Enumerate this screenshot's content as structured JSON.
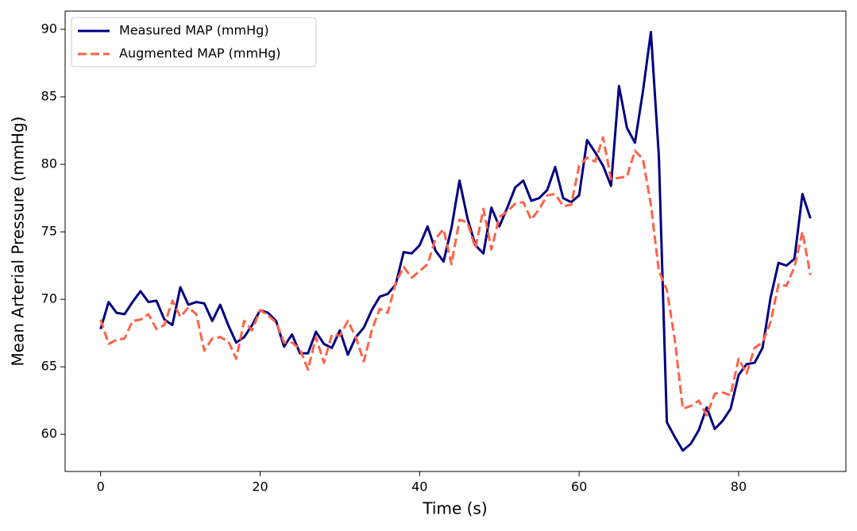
{
  "chart_data": {
    "type": "line",
    "xlabel": "Time (s)",
    "ylabel": "Mean Arterial Pressure (mmHg)",
    "x": [
      0,
      1,
      2,
      3,
      4,
      5,
      6,
      7,
      8,
      9,
      10,
      11,
      12,
      13,
      14,
      15,
      16,
      17,
      18,
      19,
      20,
      21,
      22,
      23,
      24,
      25,
      26,
      27,
      28,
      29,
      30,
      31,
      32,
      33,
      34,
      35,
      36,
      37,
      38,
      39,
      40,
      41,
      42,
      43,
      44,
      45,
      46,
      47,
      48,
      49,
      50,
      51,
      52,
      53,
      54,
      55,
      56,
      57,
      58,
      59,
      60,
      61,
      62,
      63,
      64,
      65,
      66,
      67,
      68,
      69,
      70,
      71,
      72,
      73,
      74,
      75,
      76,
      77,
      78,
      79,
      80,
      81,
      82,
      83,
      84,
      85,
      86,
      87,
      88,
      89
    ],
    "series": [
      {
        "name": "Measured MAP (mmHg)",
        "color": "#000080",
        "dash": false,
        "values": [
          67.8,
          69.8,
          69.0,
          68.9,
          69.8,
          70.6,
          69.8,
          69.9,
          68.5,
          68.1,
          70.9,
          69.6,
          69.8,
          69.7,
          68.4,
          69.6,
          68.1,
          66.8,
          67.2,
          68.1,
          69.2,
          69.0,
          68.4,
          66.5,
          67.4,
          66.0,
          66.0,
          67.6,
          66.7,
          66.4,
          67.7,
          65.9,
          67.2,
          67.9,
          69.2,
          70.2,
          70.4,
          71.1,
          73.5,
          73.4,
          74.0,
          75.4,
          73.6,
          72.8,
          75.3,
          78.8,
          76.0,
          74.0,
          73.4,
          76.8,
          75.4,
          76.8,
          78.3,
          78.8,
          77.3,
          77.5,
          78.1,
          79.8,
          77.5,
          77.2,
          77.7,
          81.8,
          80.9,
          79.9,
          78.4,
          85.8,
          82.7,
          81.6,
          85.4,
          89.8,
          80.6,
          60.9,
          59.8,
          58.8,
          59.3,
          60.3,
          62.0,
          60.4,
          61.0,
          61.9,
          64.4,
          65.2,
          65.3,
          66.4,
          70.1,
          72.7,
          72.5,
          73.0,
          77.8,
          76.0
        ]
      },
      {
        "name": "Augmented MAP (mmHg)",
        "color": "#ff6347",
        "dash": true,
        "values": [
          68.5,
          66.7,
          67.0,
          67.1,
          68.4,
          68.5,
          68.9,
          67.8,
          68.1,
          69.9,
          68.7,
          69.4,
          68.9,
          66.2,
          67.1,
          67.2,
          66.9,
          65.6,
          68.4,
          67.7,
          69.2,
          68.8,
          68.3,
          66.8,
          66.8,
          66.3,
          64.8,
          67.2,
          65.3,
          67.4,
          67.3,
          68.4,
          67.2,
          65.4,
          67.7,
          69.3,
          69.0,
          71.2,
          72.4,
          71.6,
          72.1,
          72.6,
          74.5,
          75.2,
          72.6,
          75.9,
          75.7,
          73.8,
          76.7,
          73.7,
          76.1,
          76.5,
          77.1,
          77.2,
          75.9,
          76.7,
          77.7,
          77.8,
          76.9,
          77.0,
          79.9,
          80.5,
          80.2,
          82.0,
          78.9,
          79.0,
          79.1,
          81.0,
          80.4,
          77.0,
          72.1,
          70.7,
          67.0,
          61.9,
          62.1,
          62.5,
          61.4,
          63.0,
          63.1,
          62.9,
          65.6,
          64.5,
          66.4,
          66.8,
          68.3,
          71.1,
          71.0,
          72.4,
          75.0,
          71.8
        ]
      }
    ],
    "xlim": [
      -4.45,
      93.45
    ],
    "ylim": [
      57.25,
      91.35
    ],
    "xticks": [
      0,
      20,
      40,
      60,
      80
    ],
    "yticks": [
      60,
      65,
      70,
      75,
      80,
      85,
      90
    ],
    "grid": false,
    "legend": "upper left"
  }
}
